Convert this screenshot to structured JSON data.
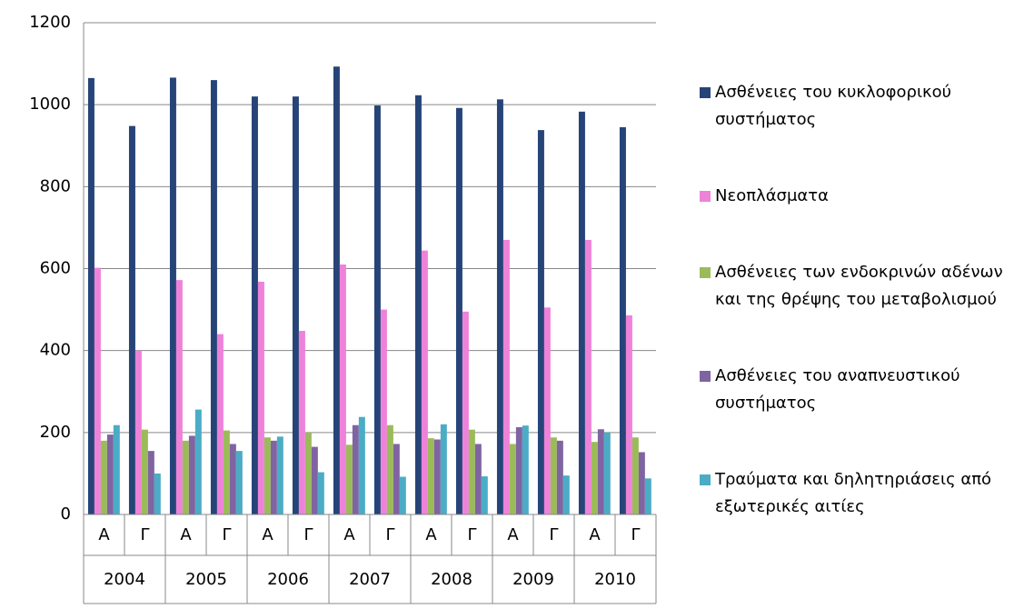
{
  "chart_data": {
    "type": "bar",
    "categories": [
      "Α",
      "Γ",
      "Α",
      "Γ",
      "Α",
      "Γ",
      "Α",
      "Γ",
      "Α",
      "Γ",
      "Α",
      "Γ",
      "Α",
      "Γ"
    ],
    "category_groups": [
      "2004",
      "2005",
      "2006",
      "2007",
      "2008",
      "2009",
      "2010"
    ],
    "series": [
      {
        "name": "Ασθένειες του κυκλοφορικού συστήματος",
        "color": "#264478",
        "values": [
          1065,
          948,
          1066,
          1060,
          1020,
          1020,
          1093,
          998,
          1023,
          992,
          1013,
          938,
          983,
          945
        ]
      },
      {
        "name": "Νεοπλάσματα",
        "color": "#ee82d9",
        "values": [
          602,
          400,
          572,
          440,
          568,
          448,
          610,
          500,
          644,
          495,
          670,
          505,
          670,
          486
        ]
      },
      {
        "name": "Ασθένειες των ενδοκρινών αδένων και της θρέψης του μεταβολισμού",
        "color": "#9bbb59",
        "values": [
          180,
          207,
          180,
          205,
          188,
          200,
          170,
          218,
          186,
          207,
          172,
          188,
          177,
          188
        ]
      },
      {
        "name": "Ασθένειες του αναπνευστικού συστήματος",
        "color": "#8064a2",
        "values": [
          195,
          155,
          192,
          172,
          180,
          165,
          218,
          172,
          183,
          172,
          213,
          180,
          208,
          152
        ]
      },
      {
        "name": "Τραύματα και δηλητηριάσεις από εξωτερικές αιτίες",
        "color": "#4bacc6",
        "values": [
          218,
          100,
          256,
          155,
          190,
          103,
          238,
          92,
          220,
          93,
          217,
          95,
          200,
          88
        ]
      }
    ],
    "ylim": [
      0,
      1200
    ],
    "yticks": [
      0,
      200,
      400,
      600,
      800,
      1000,
      1200
    ],
    "grid": true,
    "legend": "right"
  }
}
